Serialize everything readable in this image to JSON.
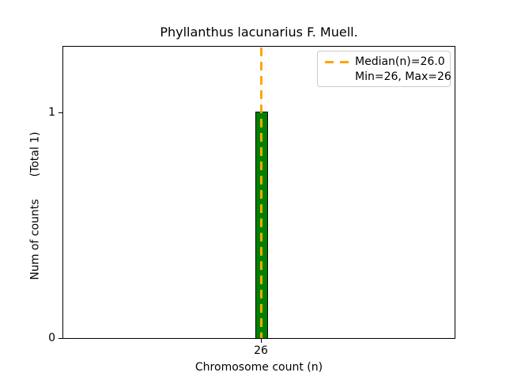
{
  "figure": {
    "title": "Phyllanthus lacunarius F. Muell.",
    "xlabel": "Chromosome count (n)",
    "ylabel": "Num of counts",
    "ylabel_total": "(Total 1)"
  },
  "ticks": {
    "y_one": "1",
    "y_zero": "0",
    "x_26": "26"
  },
  "legend": {
    "median_label": "Median(n)=26.0",
    "minmax_label": "Min=26, Max=26"
  },
  "colors": {
    "bar_fill": "#008000",
    "bar_edge": "#000000",
    "median_line": "#FFA500",
    "legend_border": "#cccccc",
    "axes": "#000000",
    "background": "#ffffff"
  },
  "chart_data": {
    "type": "bar",
    "title": "Phyllanthus lacunarius F. Muell.",
    "xlabel": "Chromosome count (n)",
    "ylabel": "Num of counts (Total 1)",
    "categories": [
      26
    ],
    "values": [
      1
    ],
    "total_counts": 1,
    "median": 26.0,
    "min": 26,
    "max": 26,
    "xticks": [
      26
    ],
    "yticks": [
      0,
      1
    ],
    "ylim": [
      0,
      1.3
    ],
    "bar_color": "#008000",
    "bar_edge_color": "#000000",
    "median_line": {
      "value": 26.0,
      "color": "#FFA500",
      "style": "dashed"
    },
    "legend_entries": [
      "Median(n)=26.0",
      "Min=26, Max=26"
    ],
    "legend_position": "upper right",
    "grid": false
  }
}
